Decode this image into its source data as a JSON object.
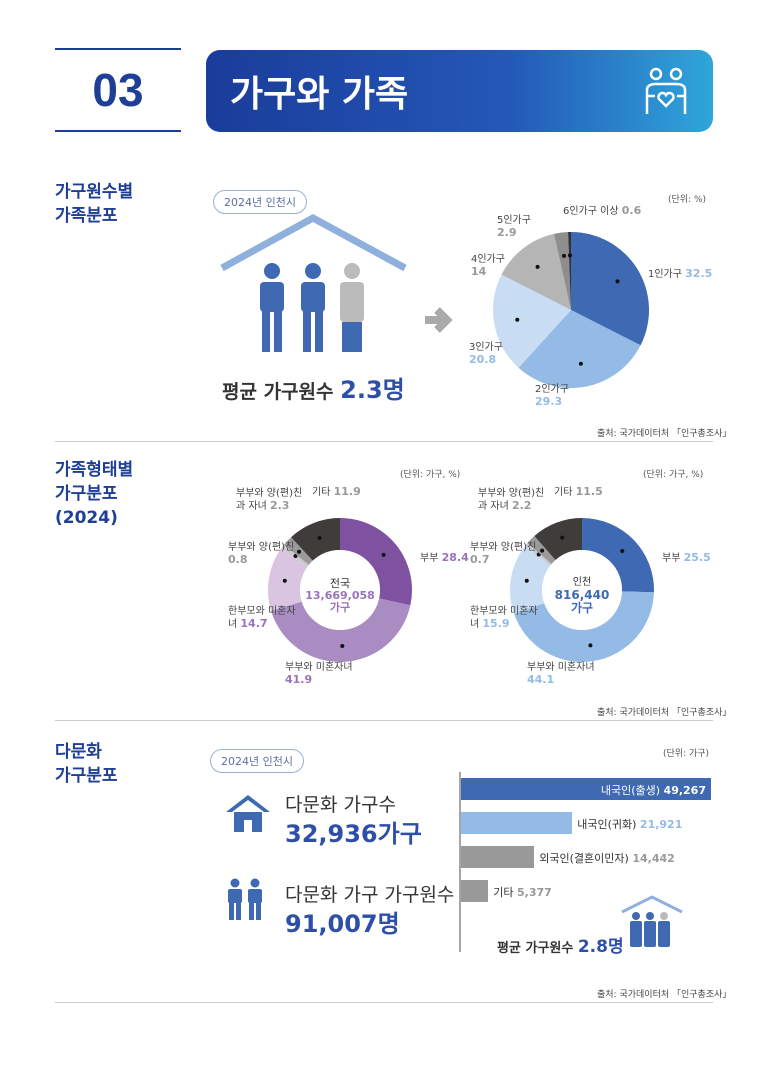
{
  "header": {
    "number": "03",
    "title": "가구와 가족",
    "icon": "family-heart-icon"
  },
  "sections": [
    {
      "title": "가구원수별\n가족분포",
      "badge": "2024년 인천시",
      "avg_label": "평균 가구원수",
      "avg_value": "2.3명",
      "source": "출처: 국가데이터처 「인구총조사」"
    },
    {
      "title": "가족형태별\n가구분포\n(2024)",
      "source": "출처: 국가데이터처 「인구총조사」"
    },
    {
      "title": "다문화\n가구분포",
      "badge": "2024년 인천시",
      "households_label": "다문화 가구수",
      "households_value": "32,936가구",
      "members_label": "다문화 가구 가구원수",
      "members_value": "91,007명",
      "avg_label": "평균 가구원수",
      "avg_value": "2.8명",
      "source": "출처: 국가데이터처 「인구총조사」"
    }
  ],
  "chart_data": [
    {
      "type": "pie",
      "unit": "(단위: %)",
      "categories": [
        "1인가구",
        "2인가구",
        "3인가구",
        "4인가구",
        "5인가구",
        "6인가구 이상"
      ],
      "values": [
        32.5,
        29.3,
        20.8,
        14.0,
        2.9,
        0.6
      ],
      "colors": [
        "#3f69b2",
        "#93bbe5",
        "#c8dcf3",
        "#b5b5b5",
        "#8e8e8e",
        "#333333"
      ]
    },
    {
      "type": "pie",
      "donut": true,
      "unit": "(단위: 가구, %)",
      "center": [
        "전국",
        "13,669,058",
        "가구"
      ],
      "categories": [
        "부부",
        "부부와 미혼자녀",
        "한부모와 미혼자녀",
        "부부와 양(편)친",
        "부부와 양(편)친과 자녀",
        "기타"
      ],
      "values": [
        28.4,
        41.9,
        14.7,
        0.8,
        2.3,
        11.9
      ],
      "colors": [
        "#7e52a0",
        "#a88cc2",
        "#d9c4e1",
        "#c9c9c9",
        "#9a9a9a",
        "#403c3c"
      ]
    },
    {
      "type": "pie",
      "donut": true,
      "unit": "(단위: 가구, %)",
      "center": [
        "인천",
        "816,440",
        "가구"
      ],
      "categories": [
        "부부",
        "부부와 미혼자녀",
        "한부모와 미혼자녀",
        "부부와 양(편)친",
        "부부와 양(편)친과 자녀",
        "기타"
      ],
      "values": [
        25.5,
        44.1,
        15.9,
        0.7,
        2.2,
        11.5
      ],
      "colors": [
        "#3f69b2",
        "#93bbe5",
        "#c8dcf3",
        "#c9c9c9",
        "#9a9a9a",
        "#403c3c"
      ]
    },
    {
      "type": "bar",
      "orientation": "horizontal",
      "unit": "(단위: 가구)",
      "categories": [
        "내국인(출생)",
        "내국인(귀화)",
        "외국인(결혼이민자)",
        "기타"
      ],
      "values": [
        49267,
        21921,
        14442,
        5377
      ],
      "value_labels": [
        "49,267",
        "21,921",
        "14,442",
        "5,377"
      ],
      "colors": [
        "#3f69b2",
        "#93bbe5",
        "#999999",
        "#999999"
      ]
    }
  ]
}
